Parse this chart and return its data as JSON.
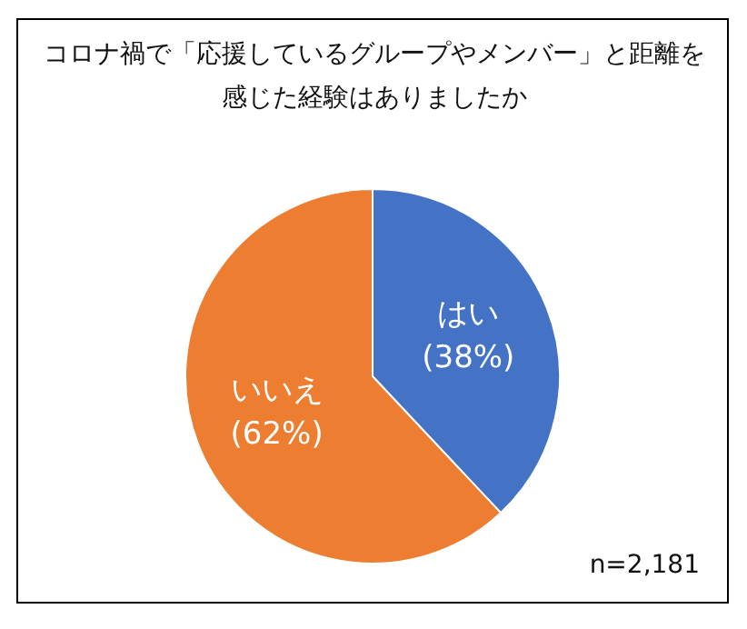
{
  "chart_data": {
    "type": "pie",
    "title": "コロナ禍で「応援しているグループやメンバー」と距離を感じた経験はありましたか",
    "categories": [
      "はい",
      "いいえ"
    ],
    "values": [
      38,
      62
    ],
    "colors": [
      "#4472c4",
      "#ed7d31"
    ],
    "value_labels": [
      "(38%)",
      "(62%)"
    ],
    "annotations": [
      "n=2,181"
    ]
  }
}
